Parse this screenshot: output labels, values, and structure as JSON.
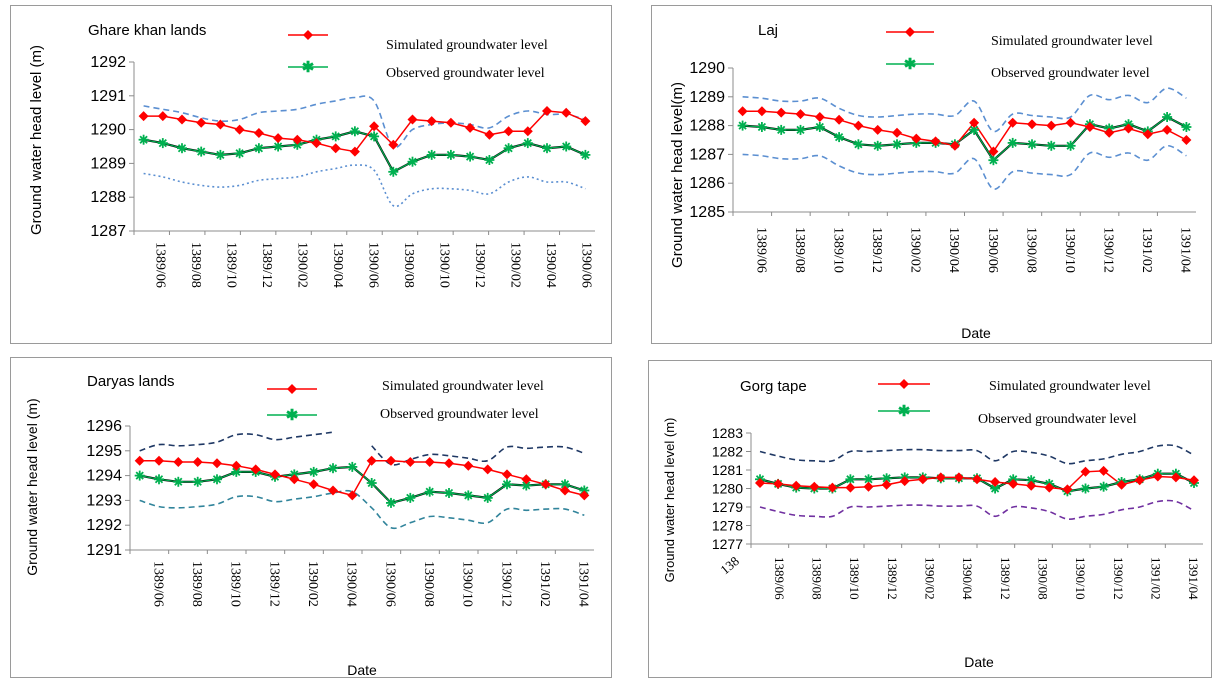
{
  "chart_data": [
    {
      "type": "line",
      "title": "Ghare khan lands",
      "ylabel": "Ground water head level (m)",
      "xlabel": "",
      "ylim": [
        1287,
        1292
      ],
      "yticks": [
        1287,
        1288,
        1289,
        1290,
        1291,
        1292
      ],
      "x_tick_labels": [
        "1389/06",
        "1389/08",
        "1389/10",
        "1389/12",
        "1390/02",
        "1390/04",
        "1390/06",
        "1390/08",
        "1390/10",
        "1390/12",
        "1390/02",
        "1390/04",
        "1390/06"
      ],
      "legend": {
        "simulated": "Simulated groundwater level",
        "observed": "Observed groundwater level"
      },
      "series": [
        {
          "name": "Simulated groundwater level",
          "color": "#ff0000",
          "marker": "diamond",
          "values": [
            1290.4,
            1290.4,
            1290.3,
            1290.2,
            1290.15,
            1290.0,
            1289.9,
            1289.75,
            1289.7,
            1289.6,
            1289.45,
            1289.35,
            1290.1,
            1289.55,
            1290.3,
            1290.25,
            1290.2,
            1290.05,
            1289.85,
            1289.95,
            1289.95,
            1290.55,
            1290.5,
            1290.25
          ]
        },
        {
          "name": "Observed groundwater level",
          "color": "#00b050",
          "marker": "star",
          "values": [
            1289.7,
            1289.6,
            1289.45,
            1289.35,
            1289.25,
            1289.3,
            1289.45,
            1289.5,
            1289.55,
            1289.7,
            1289.8,
            1289.95,
            1289.8,
            1288.75,
            1289.05,
            1289.25,
            1289.25,
            1289.2,
            1289.1,
            1289.45,
            1289.6,
            1289.45,
            1289.5,
            1289.25
          ]
        }
      ],
      "bands": [
        {
          "color": "#5b8fd1",
          "style": "dashed",
          "values": [
            1290.7,
            1290.6,
            1290.5,
            1290.35,
            1290.25,
            1290.3,
            1290.5,
            1290.55,
            1290.6,
            1290.75,
            1290.85,
            1290.95,
            1290.85,
            1289.5,
            1290.0,
            1290.15,
            1290.2,
            1290.15,
            1290.05,
            1290.4,
            1290.55,
            1290.45,
            1290.45,
            1290.3
          ]
        },
        {
          "color": "#5b8fd1",
          "style": "dotted",
          "values": [
            1288.7,
            1288.6,
            1288.45,
            1288.35,
            1288.3,
            1288.35,
            1288.5,
            1288.55,
            1288.6,
            1288.75,
            1288.85,
            1288.95,
            1288.8,
            1287.75,
            1288.1,
            1288.25,
            1288.25,
            1288.2,
            1288.1,
            1288.45,
            1288.6,
            1288.45,
            1288.45,
            1288.25
          ]
        }
      ]
    },
    {
      "type": "line",
      "title": "Laj",
      "ylabel": "Ground water head level(m)",
      "xlabel": "Date",
      "ylim": [
        1285,
        1290
      ],
      "yticks": [
        1285,
        1286,
        1287,
        1288,
        1289,
        1290
      ],
      "x_tick_labels": [
        "1389/06",
        "1389/08",
        "1389/10",
        "1389/12",
        "1390/02",
        "1390/04",
        "1390/06",
        "1390/08",
        "1390/10",
        "1390/12",
        "1391/02",
        "1391/04"
      ],
      "legend": {
        "simulated": "Simulated groundwater level",
        "observed": "Observed groundwater level"
      },
      "series": [
        {
          "name": "Simulated groundwater level",
          "color": "#ff0000",
          "marker": "diamond",
          "values": [
            1288.5,
            1288.5,
            1288.45,
            1288.4,
            1288.3,
            1288.2,
            1288.0,
            1287.85,
            1287.75,
            1287.55,
            1287.45,
            1287.3,
            1288.1,
            1287.1,
            1288.1,
            1288.05,
            1288.0,
            1288.1,
            1287.95,
            1287.75,
            1287.9,
            1287.7,
            1287.85,
            1287.5
          ]
        },
        {
          "name": "Observed groundwater level",
          "color": "#00b050",
          "marker": "star",
          "values": [
            1288.0,
            1287.95,
            1287.85,
            1287.85,
            1287.95,
            1287.6,
            1287.35,
            1287.3,
            1287.35,
            1287.4,
            1287.4,
            1287.35,
            1287.85,
            1286.8,
            1287.4,
            1287.35,
            1287.3,
            1287.3,
            1288.05,
            1287.9,
            1288.05,
            1287.8,
            1288.3,
            1287.95
          ]
        }
      ],
      "bands": [
        {
          "color": "#5b8fd1",
          "style": "dashed",
          "values": [
            1289.0,
            1288.95,
            1288.85,
            1288.85,
            1288.95,
            1288.6,
            1288.35,
            1288.3,
            1288.35,
            1288.4,
            1288.4,
            1288.35,
            1288.85,
            1287.8,
            1288.4,
            1288.35,
            1288.3,
            1288.3,
            1289.05,
            1288.9,
            1289.05,
            1288.8,
            1289.3,
            1288.95
          ]
        },
        {
          "color": "#5b8fd1",
          "style": "dashed",
          "values": [
            1287.0,
            1286.95,
            1286.85,
            1286.85,
            1286.95,
            1286.6,
            1286.35,
            1286.3,
            1286.35,
            1286.4,
            1286.4,
            1286.35,
            1286.85,
            1285.8,
            1286.4,
            1286.35,
            1286.3,
            1286.3,
            1287.05,
            1286.9,
            1287.05,
            1286.8,
            1287.3,
            1286.95
          ]
        }
      ]
    },
    {
      "type": "line",
      "title": "Daryas lands",
      "ylabel": "Ground water head level (m)",
      "xlabel": "Date",
      "ylim": [
        1291,
        1296
      ],
      "yticks": [
        1291,
        1292,
        1293,
        1294,
        1295,
        1296
      ],
      "x_tick_labels": [
        "1389/06",
        "1389/08",
        "1389/10",
        "1389/12",
        "1390/02",
        "1390/04",
        "1390/06",
        "1390/08",
        "1390/10",
        "1390/12",
        "1391/02",
        "1391/04"
      ],
      "legend": {
        "simulated": "Simulated groundwater level",
        "observed": "Observed groundwater level"
      },
      "series": [
        {
          "name": "Simulated groundwater level",
          "color": "#ff0000",
          "marker": "diamond",
          "values": [
            1294.6,
            1294.6,
            1294.55,
            1294.55,
            1294.5,
            1294.4,
            1294.25,
            1294.05,
            1293.85,
            1293.65,
            1293.4,
            1293.2,
            1294.6,
            1294.6,
            1294.55,
            1294.55,
            1294.5,
            1294.4,
            1294.25,
            1294.05,
            1293.85,
            1293.65,
            1293.4,
            1293.2
          ]
        },
        {
          "name": "Observed groundwater level",
          "color": "#00b050",
          "marker": "star",
          "values": [
            1294.0,
            1293.85,
            1293.75,
            1293.75,
            1293.85,
            1294.15,
            1294.15,
            1293.95,
            1294.05,
            1294.15,
            1294.3,
            1294.35,
            1293.7,
            1292.9,
            1293.1,
            1293.35,
            1293.3,
            1293.2,
            1293.1,
            1293.65,
            1293.6,
            1293.65,
            1293.65,
            1293.4
          ]
        }
      ],
      "bands": [
        {
          "color": "#1f3864",
          "style": "dashed",
          "values": [
            1295.0,
            1295.25,
            1295.2,
            1295.25,
            1295.35,
            1295.65,
            1295.65,
            1295.45,
            1295.55,
            1295.65,
            1295.75,
            null,
            1295.2,
            1294.45,
            1294.65,
            1294.85,
            1294.8,
            1294.7,
            1294.6,
            1295.15,
            1295.1,
            1295.15,
            1295.15,
            1294.9
          ]
        },
        {
          "color": "#31849b",
          "style": "dashed",
          "values": [
            1293.0,
            1292.75,
            1292.7,
            1292.75,
            1292.85,
            1293.15,
            1293.15,
            1292.95,
            1293.05,
            1293.15,
            1293.3,
            1293.35,
            1292.7,
            1291.9,
            1292.1,
            1292.35,
            1292.3,
            1292.2,
            1292.1,
            1292.65,
            1292.6,
            1292.65,
            1292.65,
            1292.4
          ]
        }
      ]
    },
    {
      "type": "line",
      "title": "Gorg tape",
      "ylabel": "Ground water head level (m)",
      "xlabel": "Date",
      "ylim": [
        1277,
        1283
      ],
      "yticks": [
        1277,
        1278,
        1279,
        1280,
        1281,
        1282,
        1283
      ],
      "x_tick_labels": [
        "1389/06",
        "1389/08",
        "1389/10",
        "1389/12",
        "1390/02",
        "1390/04",
        "1389/12",
        "1390/08",
        "1390/10",
        "1390/12",
        "1391/02",
        "1391/04"
      ],
      "x_stray_label": "138",
      "legend": {
        "simulated": "Simulated groundwater level",
        "observed": "Observed groundwater level"
      },
      "series": [
        {
          "name": "Simulated groundwater level",
          "color": "#ff0000",
          "marker": "diamond",
          "values": [
            1280.3,
            1280.25,
            1280.15,
            1280.1,
            1280.05,
            1280.05,
            1280.1,
            1280.2,
            1280.4,
            1280.5,
            1280.6,
            1280.6,
            1280.5,
            1280.35,
            1280.25,
            1280.15,
            1280.05,
            1279.95,
            1280.9,
            1280.95,
            1280.2,
            1280.45,
            1280.65,
            1280.6,
            1280.45
          ]
        },
        {
          "name": "Observed groundwater level",
          "color": "#00b050",
          "marker": "star",
          "values": [
            1280.5,
            1280.25,
            1280.05,
            1280.0,
            1280.0,
            1280.5,
            1280.5,
            1280.55,
            1280.6,
            1280.6,
            1280.55,
            1280.55,
            1280.55,
            1280.0,
            1280.5,
            1280.45,
            1280.25,
            1279.85,
            1280.0,
            1280.1,
            1280.35,
            1280.5,
            1280.8,
            1280.8,
            1280.3
          ]
        }
      ],
      "bands": [
        {
          "color": "#1f3864",
          "style": "dashed",
          "values": [
            1282.0,
            1281.75,
            1281.55,
            1281.5,
            1281.5,
            1282.0,
            1282.0,
            1282.05,
            1282.1,
            1282.1,
            1282.05,
            1282.05,
            1282.05,
            1281.5,
            1282.0,
            1281.95,
            1281.75,
            1281.35,
            1281.5,
            1281.6,
            1281.85,
            1282.0,
            1282.3,
            1282.3,
            1281.8
          ]
        },
        {
          "color": "#7030a0",
          "style": "dashed",
          "values": [
            1279.0,
            1278.75,
            1278.55,
            1278.5,
            1278.5,
            1279.0,
            1279.0,
            1279.05,
            1279.1,
            1279.1,
            1279.05,
            1279.05,
            1279.05,
            1278.5,
            1279.0,
            1278.95,
            1278.75,
            1278.35,
            1278.5,
            1278.6,
            1278.85,
            1279.0,
            1279.3,
            1279.3,
            1278.8
          ]
        }
      ]
    }
  ]
}
